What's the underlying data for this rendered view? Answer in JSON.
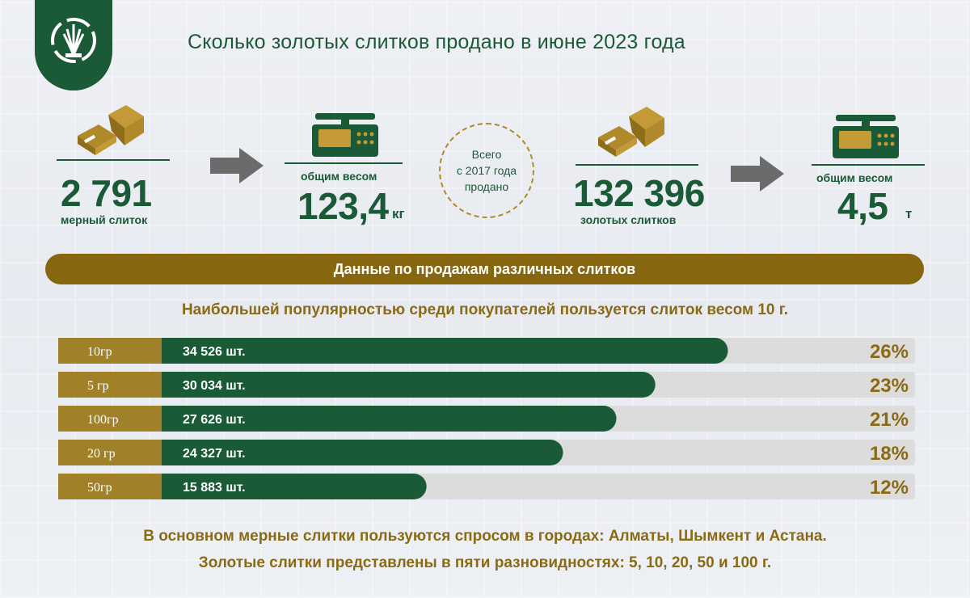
{
  "title": "Сколько золотых слитков продано в июне 2023 года",
  "colors": {
    "green": "#1b5a36",
    "gold": "#86660f",
    "label_gold": "#a08028",
    "track": "#dcdcdc"
  },
  "icons": {
    "logo": "wheat-emblem-icon",
    "bar": "gold-bar-icon",
    "scale": "scale-icon",
    "arrow": "arrow-right-icon"
  },
  "stats": {
    "june_count": "2 791",
    "june_count_label": "мерный слиток",
    "june_weight_label": "общим весом",
    "june_weight": "123,4",
    "june_weight_unit": "кг",
    "total_circle_text": "Всего\nс 2017 года\nпродано",
    "total_count": "132 396",
    "total_count_label": "золотых слитков",
    "total_weight_label": "общим весом",
    "total_weight": "4,5",
    "total_weight_unit": "т"
  },
  "banner": "Данные по продажам различных слитков",
  "subtitle": "Наибольшей популярностью среди покупателей пользуется слиток весом 10 г.",
  "chart_data": {
    "type": "bar",
    "orientation": "horizontal",
    "categories": [
      "10гр",
      "5 гр",
      "100гр",
      "20 гр",
      "50гр"
    ],
    "values": [
      34526,
      30034,
      27626,
      24327,
      15883
    ],
    "value_labels": [
      "34 526 шт.",
      "30 034 шт.",
      "27 626 шт.",
      "24 327 шт.",
      "15 883 шт."
    ],
    "percent_labels": [
      "26%",
      "23%",
      "21%",
      "18%",
      "12%"
    ],
    "xlim": [
      0,
      40000
    ]
  },
  "footer": {
    "line1": "В основном мерные слитки пользуются спросом в городах: Алматы, Шымкент и Астана.",
    "line2": "Золотые слитки представлены в пяти разновидностях: 5, 10, 20, 50 и 100 г."
  }
}
